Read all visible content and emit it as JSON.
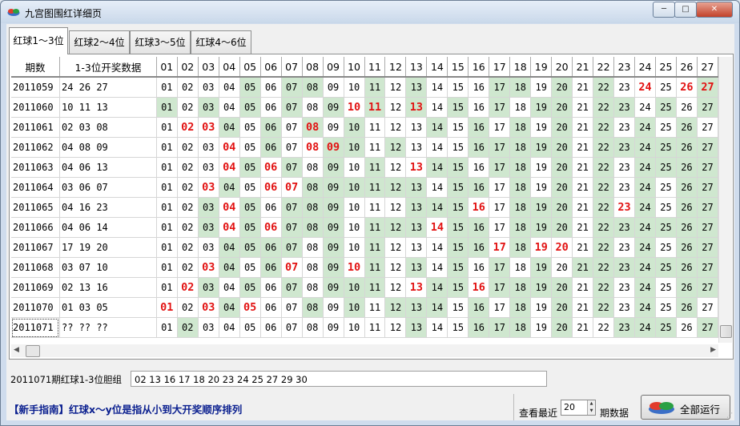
{
  "window": {
    "title": "九宫图围红详细页",
    "minimize_glyph": "─",
    "maximize_glyph": "□",
    "close_glyph": "✕"
  },
  "tabs": [
    {
      "label": "红球1～3位"
    },
    {
      "label": "红球2～4位"
    },
    {
      "label": "红球3～5位"
    },
    {
      "label": "红球4～6位"
    }
  ],
  "table": {
    "headers": [
      "期数",
      "1-3位开奖数据",
      "01",
      "02",
      "03",
      "04",
      "05",
      "06",
      "07",
      "08",
      "09",
      "10",
      "11",
      "12",
      "13",
      "14",
      "15",
      "16",
      "17",
      "18",
      "19",
      "20",
      "21",
      "22",
      "23",
      "24",
      "25",
      "26",
      "27"
    ],
    "rows": [
      {
        "period": "2011059",
        "draw": "24 26 27",
        "green": [
          5,
          7,
          8,
          11,
          13,
          17,
          18,
          20,
          22,
          27
        ],
        "hit": [
          24,
          26,
          27
        ]
      },
      {
        "period": "2011060",
        "draw": "10 11 13",
        "green": [
          1,
          3,
          5,
          7,
          9,
          11,
          13,
          15,
          17,
          19,
          20,
          22,
          23,
          25,
          27
        ],
        "hit": [
          10,
          11,
          13
        ]
      },
      {
        "period": "2011061",
        "draw": "02 03 08",
        "green": [
          4,
          6,
          8,
          10,
          14,
          16,
          18,
          20,
          22,
          24,
          26
        ],
        "hit": [
          2,
          3,
          8
        ]
      },
      {
        "period": "2011062",
        "draw": "04 08 09",
        "green": [
          6,
          9,
          10,
          12,
          16,
          17,
          18,
          19,
          20,
          22,
          23,
          24,
          25,
          26,
          27
        ],
        "hit": [
          4,
          8,
          9
        ]
      },
      {
        "period": "2011063",
        "draw": "04 06 13",
        "green": [
          5,
          7,
          9,
          11,
          14,
          15,
          17,
          18,
          20,
          22,
          24,
          25,
          26,
          27
        ],
        "hit": [
          4,
          6,
          13
        ]
      },
      {
        "period": "2011064",
        "draw": "03 06 07",
        "green": [
          4,
          8,
          9,
          10,
          11,
          12,
          13,
          15,
          16,
          18,
          20,
          22,
          24,
          26,
          27
        ],
        "hit": [
          3,
          6,
          7
        ]
      },
      {
        "period": "2011065",
        "draw": "04 16 23",
        "green": [
          3,
          5,
          7,
          8,
          9,
          13,
          14,
          15,
          18,
          19,
          20,
          22,
          24,
          26,
          27
        ],
        "hit": [
          4,
          16,
          23
        ]
      },
      {
        "period": "2011066",
        "draw": "04 06 14",
        "green": [
          3,
          5,
          7,
          8,
          9,
          11,
          12,
          13,
          15,
          16,
          18,
          19,
          20,
          22,
          23,
          24,
          25,
          26,
          27
        ],
        "hit": [
          4,
          6,
          14
        ]
      },
      {
        "period": "2011067",
        "draw": "17 19 20",
        "green": [
          4,
          5,
          6,
          7,
          9,
          11,
          15,
          16,
          18,
          22,
          24,
          26,
          27
        ],
        "hit": [
          17,
          19,
          20
        ]
      },
      {
        "period": "2011068",
        "draw": "03 07 10",
        "green": [
          4,
          6,
          9,
          11,
          13,
          15,
          17,
          19,
          21,
          22,
          23,
          24,
          25,
          26,
          27
        ],
        "hit": [
          3,
          7,
          10
        ]
      },
      {
        "period": "2011069",
        "draw": "02 13 16",
        "green": [
          3,
          5,
          7,
          9,
          10,
          11,
          14,
          15,
          17,
          18,
          19,
          20,
          22,
          24,
          26,
          27
        ],
        "hit": [
          2,
          13,
          16
        ]
      },
      {
        "period": "2011070",
        "draw": "01 03 05",
        "green": [
          4,
          8,
          10,
          12,
          13,
          14,
          16,
          18,
          20,
          22,
          24,
          26
        ],
        "hit": [
          1,
          3,
          5
        ]
      },
      {
        "period": "2011071",
        "draw": "?? ?? ??",
        "green": [
          2,
          13,
          16,
          17,
          18,
          20,
          23,
          24,
          25,
          27
        ],
        "hit": []
      }
    ]
  },
  "gall": {
    "label": "2011071期红球1-3位胆组",
    "value": "02 13 16 17 18 20 23 24 25 27 29 30"
  },
  "footer": {
    "guide": "【新手指南】红球x～y位是指从小到大开奖顺序排列",
    "recent_label": "查看最近",
    "recent_value": "20",
    "periods_label": "期数据",
    "run_label": "全部运行"
  },
  "colors": {
    "hit": "#e21212",
    "green_cell": "#cfe7cf",
    "guide_text": "#0a1f8f"
  }
}
